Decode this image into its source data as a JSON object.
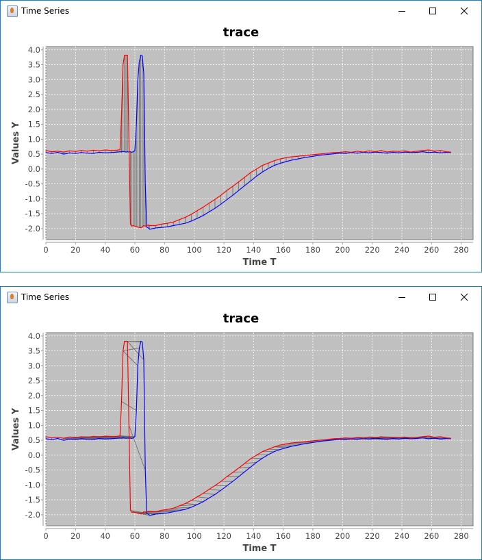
{
  "windows": [
    {
      "title": "Time Series",
      "controls": {
        "minimize": "minimize-icon",
        "maximize": "maximize-icon",
        "close": "close-icon"
      }
    },
    {
      "title": "Time Series",
      "controls": {
        "minimize": "minimize-icon",
        "maximize": "maximize-icon",
        "close": "close-icon"
      }
    }
  ],
  "colors": {
    "series_a": "#ff0000",
    "series_b": "#0000ff",
    "plot_background": "#c0c0c0",
    "grid": "#ffffff",
    "connector": "#666666",
    "window_border": "#1a7fd4"
  },
  "chart_data": [
    {
      "type": "line",
      "title": "trace",
      "xlabel": "Time T",
      "ylabel": "Values Y",
      "xlim": [
        0,
        288
      ],
      "ylim": [
        -2.37,
        4.11
      ],
      "xticks": [
        "0",
        "20",
        "40",
        "60",
        "80",
        "100",
        "120",
        "140",
        "160",
        "180",
        "200",
        "220",
        "240",
        "260",
        "280"
      ],
      "yticks": [
        "-2.0",
        "-1.5",
        "-1.0",
        "-0.5",
        "0.0",
        "0.5",
        "1.0",
        "1.5",
        "2.0",
        "2.5",
        "3.0",
        "3.5",
        "4.0"
      ],
      "grid": true,
      "alignment": "index-to-index connectors",
      "series_ref": "shared"
    },
    {
      "type": "line",
      "title": "trace",
      "xlabel": "Time T",
      "ylabel": "Values Y",
      "xlim": [
        0,
        288
      ],
      "ylim": [
        -2.37,
        4.11
      ],
      "xticks": [
        "0",
        "20",
        "40",
        "60",
        "80",
        "100",
        "120",
        "140",
        "160",
        "180",
        "200",
        "220",
        "240",
        "260",
        "280"
      ],
      "yticks": [
        "-2.0",
        "-1.5",
        "-1.0",
        "-0.5",
        "0.0",
        "0.5",
        "1.0",
        "1.5",
        "2.0",
        "2.5",
        "3.0",
        "3.5",
        "4.0"
      ],
      "grid": true,
      "alignment": "dynamic time warping connectors",
      "series_ref": "shared"
    }
  ],
  "series": {
    "x": [
      0,
      4,
      8,
      12,
      16,
      20,
      24,
      28,
      32,
      36,
      40,
      44,
      48,
      50,
      51,
      52,
      53,
      54,
      55,
      56,
      57,
      58,
      59,
      60,
      61,
      62,
      63,
      64,
      65,
      66,
      67,
      68,
      69,
      70,
      74,
      78,
      82,
      86,
      90,
      94,
      98,
      102,
      106,
      110,
      114,
      118,
      122,
      126,
      130,
      134,
      138,
      142,
      146,
      150,
      154,
      158,
      162,
      166,
      170,
      174,
      178,
      182,
      186,
      190,
      194,
      198,
      202,
      206,
      210,
      214,
      218,
      222,
      226,
      230,
      234,
      238,
      242,
      246,
      250,
      254,
      258,
      262,
      266,
      270,
      273
    ],
    "red": [
      0.62,
      0.58,
      0.6,
      0.57,
      0.61,
      0.59,
      0.62,
      0.6,
      0.63,
      0.61,
      0.64,
      0.62,
      0.63,
      0.65,
      1.8,
      3.5,
      3.82,
      3.82,
      3.82,
      1.0,
      -1.85,
      -1.92,
      -1.9,
      -1.92,
      -1.93,
      -1.95,
      -1.96,
      -1.97,
      -1.95,
      -1.9,
      -1.92,
      -1.9,
      -1.88,
      -1.9,
      -1.9,
      -1.85,
      -1.82,
      -1.78,
      -1.7,
      -1.62,
      -1.52,
      -1.4,
      -1.28,
      -1.15,
      -1.02,
      -0.88,
      -0.72,
      -0.58,
      -0.43,
      -0.28,
      -0.12,
      0.0,
      0.12,
      0.2,
      0.28,
      0.34,
      0.38,
      0.41,
      0.43,
      0.45,
      0.47,
      0.49,
      0.51,
      0.53,
      0.55,
      0.56,
      0.58,
      0.56,
      0.6,
      0.57,
      0.61,
      0.58,
      0.62,
      0.57,
      0.6,
      0.59,
      0.61,
      0.57,
      0.6,
      0.62,
      0.64,
      0.6,
      0.62,
      0.58,
      0.57
    ],
    "blue": [
      0.55,
      0.52,
      0.56,
      0.5,
      0.54,
      0.52,
      0.55,
      0.53,
      0.52,
      0.56,
      0.54,
      0.55,
      0.57,
      0.58,
      0.57,
      0.59,
      0.58,
      0.57,
      0.58,
      0.57,
      0.58,
      0.56,
      0.58,
      0.62,
      1.5,
      3.0,
      3.6,
      3.82,
      3.8,
      3.2,
      -0.5,
      -1.95,
      -1.98,
      -2.02,
      -1.98,
      -1.96,
      -1.94,
      -1.9,
      -1.86,
      -1.82,
      -1.75,
      -1.66,
      -1.56,
      -1.44,
      -1.32,
      -1.18,
      -1.03,
      -0.88,
      -0.72,
      -0.56,
      -0.4,
      -0.24,
      -0.1,
      0.02,
      0.12,
      0.19,
      0.25,
      0.3,
      0.34,
      0.38,
      0.41,
      0.44,
      0.47,
      0.49,
      0.51,
      0.53,
      0.52,
      0.55,
      0.53,
      0.56,
      0.54,
      0.57,
      0.55,
      0.53,
      0.56,
      0.54,
      0.57,
      0.55,
      0.56,
      0.58,
      0.55,
      0.57,
      0.54,
      0.56,
      0.55
    ]
  }
}
